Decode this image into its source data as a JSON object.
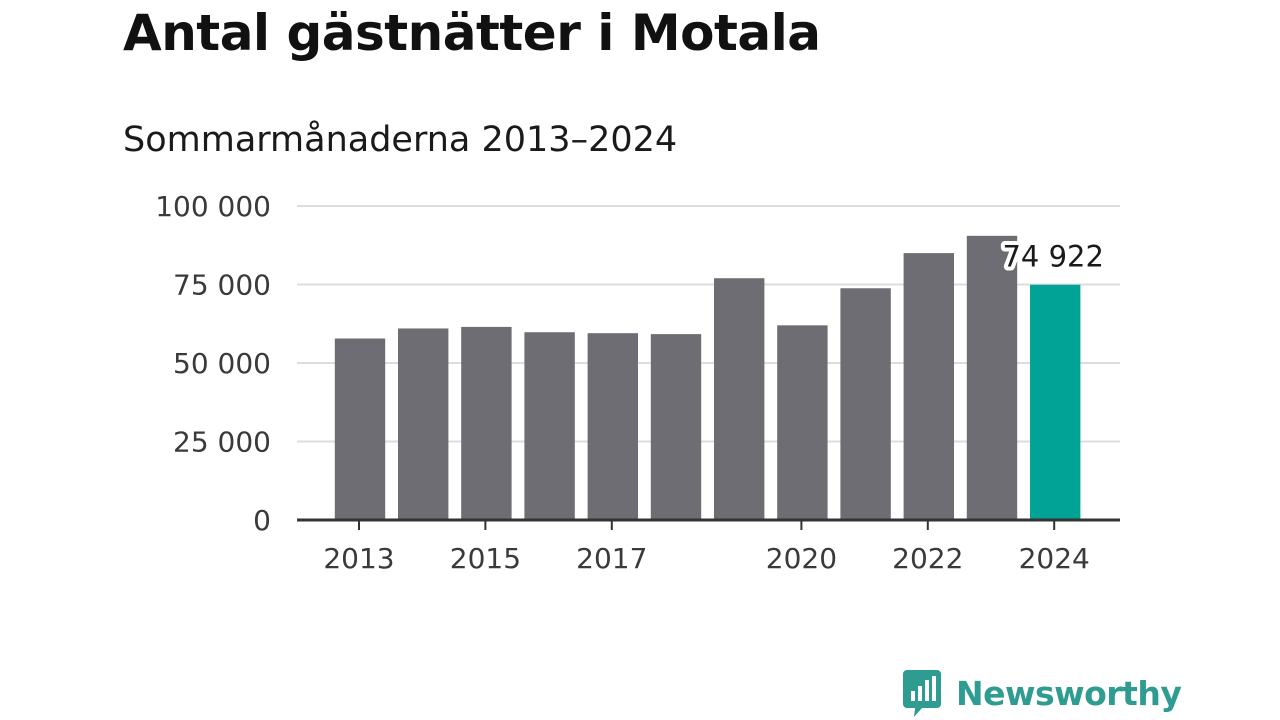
{
  "title": "Antal gästnätter i Motala",
  "subtitle": "Sommarmånaderna 2013–2024",
  "colors": {
    "bar": "#6e6d73",
    "highlight": "#00a396",
    "grid": "#dddddd",
    "axis": "#333333",
    "brand": "#2e9c91"
  },
  "brand": {
    "name": "Newsworthy",
    "icon": "newsworthy-chart-bubble-icon"
  },
  "chart_data": {
    "type": "bar",
    "x": [
      2013,
      2014,
      2015,
      2016,
      2017,
      2018,
      2019,
      2020,
      2021,
      2022,
      2023,
      2024
    ],
    "values": [
      57800,
      61000,
      61500,
      59800,
      59500,
      59200,
      77000,
      62000,
      73800,
      85000,
      90500,
      74922
    ],
    "highlight_index": 11,
    "data_labels": [
      {
        "index": 11,
        "text": "74 922"
      }
    ],
    "ylim": [
      0,
      100000
    ],
    "y_ticks": [
      0,
      25000,
      50000,
      75000,
      100000
    ],
    "y_tick_labels": [
      "0",
      "25 000",
      "50 000",
      "75 000",
      "100 000"
    ],
    "x_tick_values": [
      2013,
      2015,
      2017,
      2020,
      2022,
      2024
    ],
    "x_tick_labels": [
      "2013",
      "2015",
      "2017",
      "2020",
      "2022",
      "2024"
    ],
    "xlabel": "",
    "ylabel": "",
    "grid": "horizontal",
    "legend": "none"
  }
}
